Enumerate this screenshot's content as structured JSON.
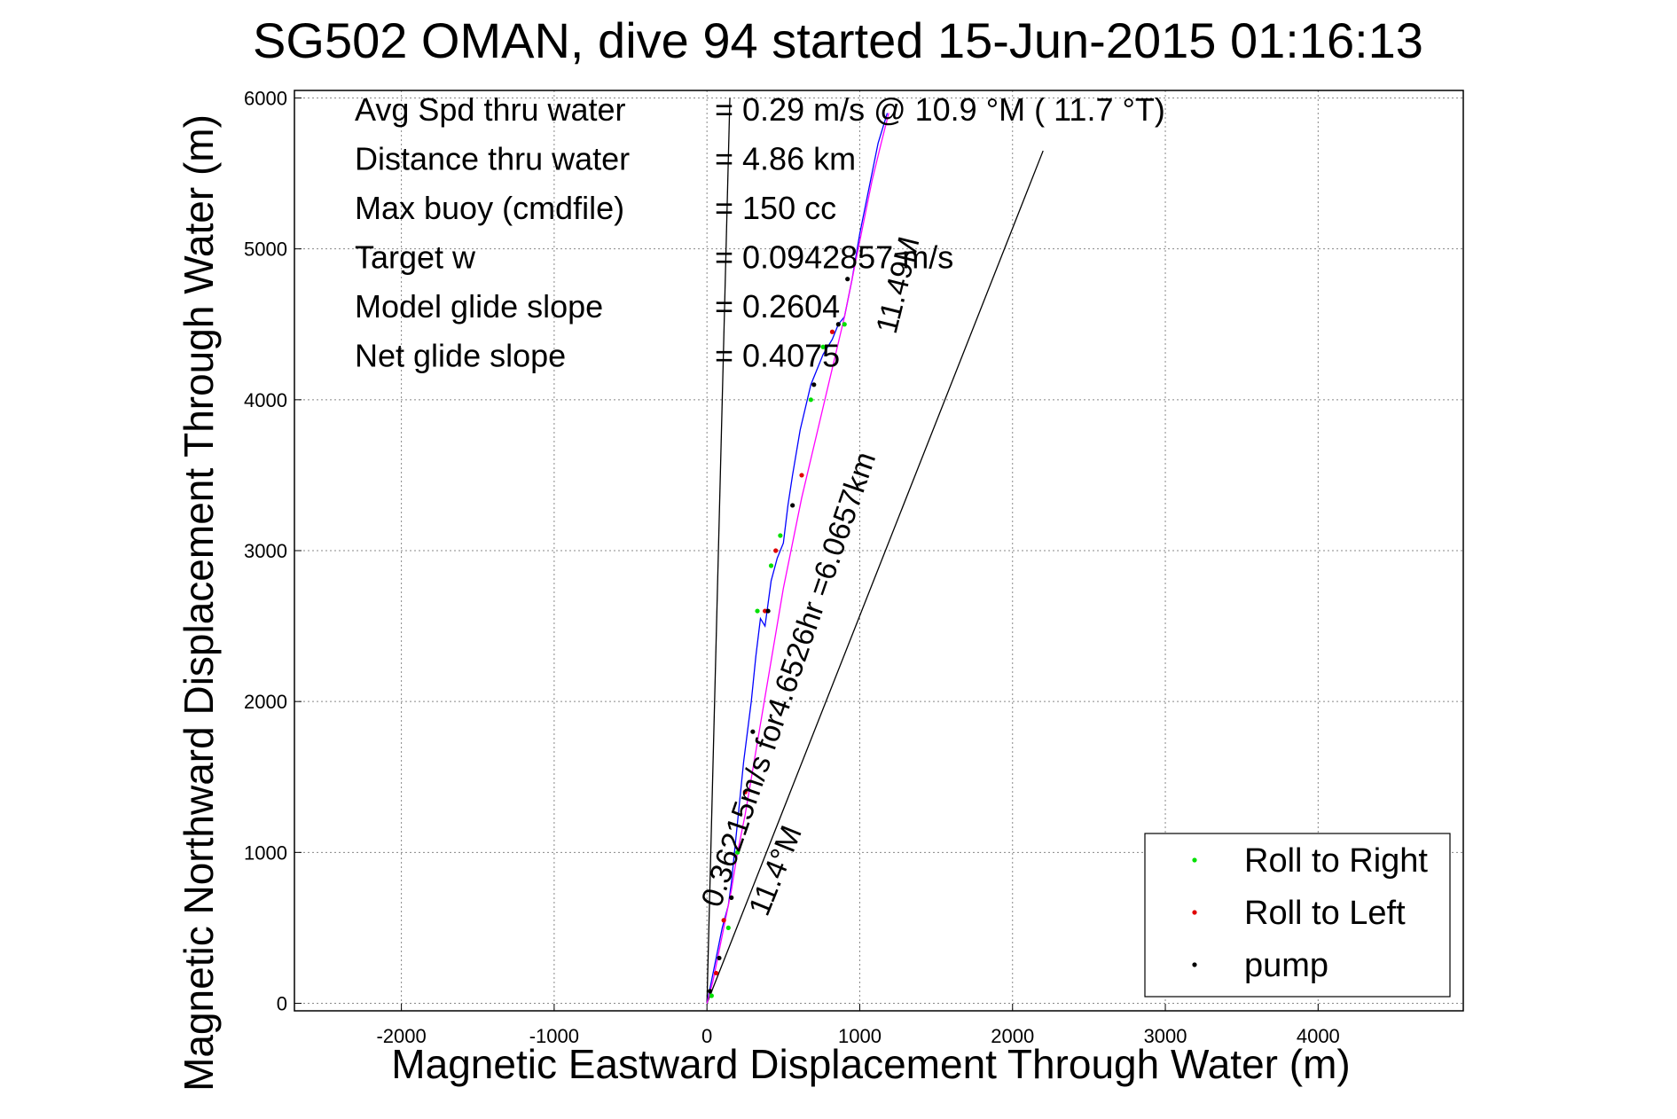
{
  "chart_data": {
    "type": "line",
    "title": "SG502 OMAN, dive 94 started 15-Jun-2015 01:16:13",
    "xlabel": "Magnetic Eastward Displacement Through Water (m)",
    "ylabel": "Magnetic Northward Displacement Through Water (m)",
    "xlim": [
      -2700,
      4950
    ],
    "ylim": [
      -50,
      6050
    ],
    "xticks": [
      -2000,
      -1000,
      0,
      1000,
      2000,
      3000,
      4000
    ],
    "yticks": [
      0,
      1000,
      2000,
      3000,
      4000,
      5000,
      6000
    ],
    "grid": true,
    "info_lines": [
      {
        "label": "Avg Spd thru water",
        "value": "=  0.29 m/s @  10.9 °M ( 11.7 °T)"
      },
      {
        "label": "Distance thru water",
        "value": "=  4.86 km"
      },
      {
        "label": "Max buoy (cmdfile)",
        "value": "= 150 cc"
      },
      {
        "label": "Target w",
        "value": "= 0.0942857 m/s"
      },
      {
        "label": "Model glide slope",
        "value": "= 0.2604"
      },
      {
        "label": "Net glide slope",
        "value": "= 0.4075"
      }
    ],
    "annotations": {
      "vector_text": "0.36215m/s for4.6526hr =6.0657km",
      "heading_low": "11.4°M",
      "heading_high": "11.49M"
    },
    "reference_lines": [
      {
        "from": [
          0,
          0
        ],
        "to": [
          150,
          6000
        ]
      },
      {
        "from": [
          0,
          0
        ],
        "to": [
          2200,
          5650
        ]
      }
    ],
    "series": [
      {
        "name": "track",
        "color": "#0000ff",
        "x": [
          0,
          30,
          60,
          100,
          140,
          160,
          180,
          210,
          240,
          290,
          320,
          350,
          380,
          420,
          460,
          500,
          530,
          560,
          610,
          680,
          760,
          820,
          860,
          900,
          950,
          1000,
          1060,
          1120,
          1180
        ],
        "y": [
          0,
          150,
          300,
          500,
          650,
          800,
          1000,
          1300,
          1600,
          2000,
          2300,
          2550,
          2500,
          2800,
          2950,
          3050,
          3300,
          3500,
          3800,
          4100,
          4300,
          4400,
          4500,
          4550,
          4800,
          5100,
          5400,
          5700,
          5900
        ]
      },
      {
        "name": "heading",
        "color": "#ff00ff",
        "x": [
          0,
          40,
          80,
          120,
          160,
          200,
          250,
          300,
          350,
          400,
          450,
          500,
          560,
          620,
          690,
          760,
          830,
          900,
          960,
          1020,
          1080,
          1140,
          1190
        ],
        "y": [
          0,
          150,
          350,
          550,
          750,
          1000,
          1250,
          1550,
          1850,
          2150,
          2450,
          2750,
          3050,
          3350,
          3650,
          3950,
          4250,
          4550,
          4850,
          5150,
          5450,
          5700,
          5900
        ]
      },
      {
        "name": "Roll to Right",
        "color": "#00e000",
        "x": [
          30,
          140,
          200,
          330,
          420,
          480,
          680,
          760,
          900
        ],
        "y": [
          50,
          500,
          1000,
          2600,
          2900,
          3100,
          4000,
          4350,
          4500
        ]
      },
      {
        "name": "Roll to Left",
        "color": "#e00000",
        "x": [
          60,
          110,
          250,
          380,
          450,
          620,
          820
        ],
        "y": [
          200,
          550,
          1400,
          2600,
          3000,
          3500,
          4450
        ]
      },
      {
        "name": "pump",
        "color": "#000000",
        "x": [
          20,
          80,
          160,
          300,
          400,
          560,
          700,
          860,
          920
        ],
        "y": [
          80,
          300,
          700,
          1800,
          2600,
          3300,
          4100,
          4500,
          4800
        ]
      }
    ],
    "legend": {
      "placement": "bottom-right",
      "entries": [
        {
          "label": "Roll to Right",
          "color": "#00e000"
        },
        {
          "label": "Roll to Left",
          "color": "#e00000"
        },
        {
          "label": "pump",
          "color": "#000000"
        }
      ]
    }
  }
}
